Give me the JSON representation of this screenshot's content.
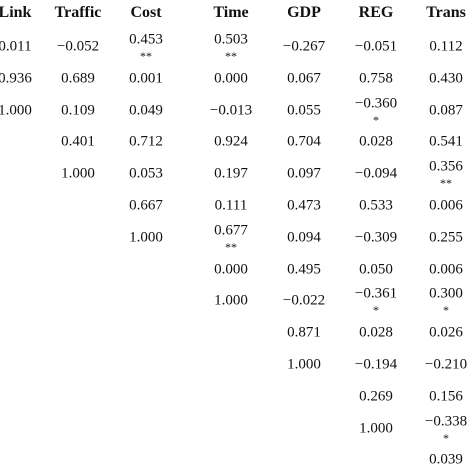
{
  "table": {
    "headers": [
      "Link",
      "Traffic",
      "Cost",
      "Time",
      "GDP",
      "REG",
      "Trans"
    ],
    "rows": [
      [
        "0.011",
        "−0.052",
        {
          "value": "0.453",
          "sig": "**"
        },
        {
          "value": "0.503",
          "sig": "**"
        },
        "−0.267",
        "−0.051",
        "0.112"
      ],
      [
        "0.936",
        "0.689",
        "0.001",
        "0.000",
        "0.067",
        "0.758",
        "0.430"
      ],
      [
        "1.000",
        "0.109",
        "0.049",
        "−0.013",
        "0.055",
        {
          "value": "−0.360",
          "sig": "*"
        },
        "0.087"
      ],
      [
        null,
        "0.401",
        "0.712",
        "0.924",
        "0.704",
        "0.028",
        "0.541"
      ],
      [
        null,
        "1.000",
        "0.053",
        "0.197",
        "0.097",
        "−0.094",
        {
          "value": "0.356",
          "sig": "**"
        }
      ],
      [
        null,
        null,
        "0.667",
        "0.111",
        "0.473",
        "0.533",
        "0.006"
      ],
      [
        null,
        null,
        "1.000",
        {
          "value": "0.677",
          "sig": "**"
        },
        "0.094",
        "−0.309",
        "0.255"
      ],
      [
        null,
        null,
        null,
        "0.000",
        "0.495",
        "0.050",
        "0.006"
      ],
      [
        null,
        null,
        null,
        "1.000",
        "−0.022",
        {
          "value": "−0.361",
          "sig": "*"
        },
        {
          "value": "0.300",
          "sig": "*"
        }
      ],
      [
        null,
        null,
        null,
        null,
        "0.871",
        "0.028",
        "0.026"
      ],
      [
        null,
        null,
        null,
        null,
        "1.000",
        "−0.194",
        "−0.210"
      ],
      [
        null,
        null,
        null,
        null,
        null,
        "0.269",
        "0.156"
      ],
      [
        null,
        null,
        null,
        null,
        null,
        "1.000",
        {
          "value": "−0.338",
          "sig": "*"
        }
      ],
      [
        null,
        null,
        null,
        null,
        null,
        null,
        "0.039"
      ]
    ]
  }
}
